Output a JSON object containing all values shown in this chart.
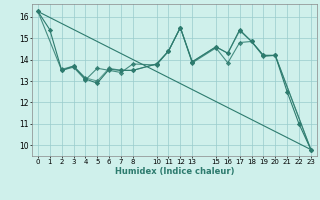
{
  "xlabel": "Humidex (Indice chaleur)",
  "bg_color": "#cff0eb",
  "grid_color": "#99cccc",
  "line_color": "#2d7b6e",
  "xlim": [
    -0.5,
    23.5
  ],
  "ylim": [
    9.5,
    16.6
  ],
  "yticks": [
    10,
    11,
    12,
    13,
    14,
    15,
    16
  ],
  "xtick_positions": [
    0,
    1,
    2,
    3,
    4,
    5,
    6,
    7,
    8,
    10,
    11,
    12,
    13,
    15,
    16,
    17,
    18,
    19,
    20,
    21,
    22,
    23
  ],
  "xtick_labels": [
    "0",
    "1",
    "2",
    "3",
    "4",
    "5",
    "6",
    "7",
    "8",
    "10",
    "11",
    "12",
    "13",
    "15",
    "16",
    "17",
    "18",
    "19",
    "20",
    "21",
    "22",
    "23"
  ],
  "series_main": [
    [
      0,
      16.25
    ],
    [
      1,
      15.4
    ],
    [
      2,
      13.5
    ],
    [
      3,
      13.7
    ],
    [
      4,
      13.1
    ],
    [
      5,
      12.9
    ],
    [
      6,
      13.55
    ],
    [
      7,
      13.5
    ],
    [
      8,
      13.5
    ],
    [
      10,
      13.8
    ],
    [
      11,
      14.4
    ],
    [
      12,
      15.5
    ],
    [
      13,
      13.9
    ],
    [
      15,
      14.6
    ],
    [
      16,
      14.3
    ],
    [
      17,
      15.4
    ],
    [
      18,
      14.85
    ],
    [
      19,
      14.2
    ],
    [
      20,
      14.2
    ],
    [
      21,
      12.5
    ],
    [
      22,
      11.0
    ],
    [
      23,
      9.8
    ]
  ],
  "series2": [
    [
      0,
      16.25
    ],
    [
      2,
      13.5
    ],
    [
      3,
      13.65
    ],
    [
      4,
      13.05
    ],
    [
      5,
      13.6
    ],
    [
      6,
      13.5
    ],
    [
      7,
      13.4
    ],
    [
      8,
      13.8
    ],
    [
      10,
      13.75
    ],
    [
      11,
      14.4
    ],
    [
      12,
      15.5
    ],
    [
      13,
      13.85
    ],
    [
      15,
      14.55
    ],
    [
      16,
      13.85
    ],
    [
      17,
      14.8
    ],
    [
      18,
      14.85
    ],
    [
      19,
      14.15
    ],
    [
      20,
      14.2
    ],
    [
      23,
      9.8
    ]
  ],
  "series3": [
    [
      2,
      13.55
    ],
    [
      3,
      13.7
    ],
    [
      4,
      13.15
    ],
    [
      5,
      13.0
    ],
    [
      6,
      13.6
    ],
    [
      7,
      13.5
    ],
    [
      8,
      13.5
    ],
    [
      10,
      13.8
    ],
    [
      11,
      14.4
    ],
    [
      12,
      15.5
    ],
    [
      13,
      13.9
    ],
    [
      15,
      14.6
    ],
    [
      16,
      14.3
    ],
    [
      17,
      15.35
    ],
    [
      18,
      14.85
    ],
    [
      19,
      14.2
    ],
    [
      20,
      14.2
    ],
    [
      23,
      9.8
    ]
  ],
  "trend_line": [
    [
      0,
      16.25
    ],
    [
      23,
      9.8
    ]
  ]
}
